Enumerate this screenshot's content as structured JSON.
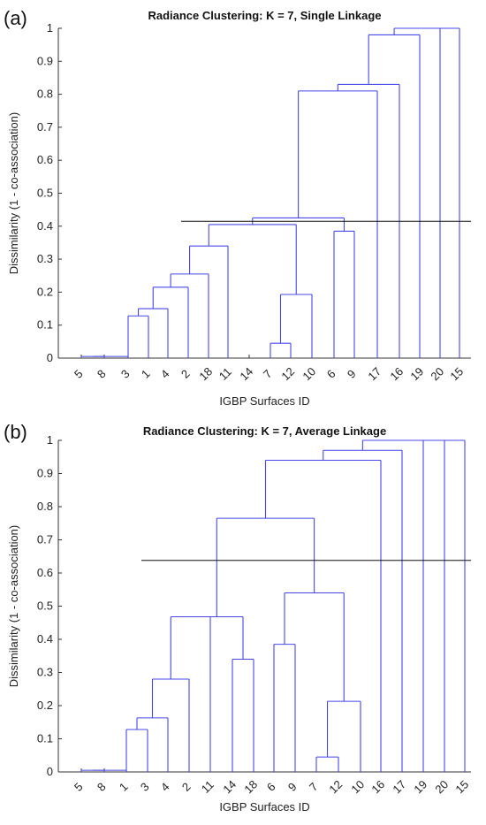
{
  "chart_data": [
    {
      "type": "dendrogram",
      "panel_label": "(a)",
      "title": "Radiance Clustering: K = 7, Single Linkage",
      "xlabel": "IGBP Surfaces ID",
      "ylabel": "Dissimilarity (1 - co-association)",
      "ylim": [
        0,
        1
      ],
      "yticks": [
        "0",
        "0.1",
        "0.2",
        "0.3",
        "0.4",
        "0.5",
        "0.6",
        "0.7",
        "0.8",
        "0.9",
        "1"
      ],
      "leaves": [
        "5",
        "8",
        "3",
        "1",
        "4",
        "2",
        "18",
        "11",
        "14",
        "7",
        "12",
        "10",
        "6",
        "9",
        "17",
        "16",
        "19",
        "20",
        "15"
      ],
      "cut_height": 0.415,
      "merges": [
        {
          "left": "5",
          "right": "8",
          "height": 0.005
        },
        {
          "left": "5-8",
          "right": "3",
          "height": 0.005
        },
        {
          "left": "3",
          "right": "1",
          "height": 0.128
        },
        {
          "left": "3-1",
          "right": "4",
          "height": 0.15
        },
        {
          "left": "3-1-4",
          "right": "2",
          "height": 0.215
        },
        {
          "left": "3-1-4-2",
          "right": "18",
          "height": 0.255
        },
        {
          "left": "3-1-4-2-18",
          "right": "11",
          "height": 0.34
        },
        {
          "left": "7",
          "right": "12",
          "height": 0.045
        },
        {
          "left": "7-12",
          "right": "10",
          "height": 0.193
        },
        {
          "left": "...-11",
          "right": "7-12-10",
          "height": 0.405
        },
        {
          "left": "6",
          "right": "9",
          "height": 0.385
        },
        {
          "left": "...-10",
          "right": "6-9",
          "height": 0.425
        },
        {
          "left": "...-9",
          "right": "17",
          "height": 0.81
        },
        {
          "left": "...-17",
          "right": "16",
          "height": 0.83
        },
        {
          "left": "...-16",
          "right": "19",
          "height": 0.98
        },
        {
          "left": "...-19",
          "right": "20",
          "height": 1.0
        },
        {
          "left": "...-20",
          "right": "15",
          "height": 1.0
        }
      ]
    },
    {
      "type": "dendrogram",
      "panel_label": "(b)",
      "title": "Radiance Clustering: K = 7, Average Linkage",
      "xlabel": "IGBP Surfaces ID",
      "ylabel": "Dissimilarity (1 - co-association)",
      "ylim": [
        0,
        1
      ],
      "yticks": [
        "0",
        "0.1",
        "0.2",
        "0.3",
        "0.4",
        "0.5",
        "0.6",
        "0.7",
        "0.8",
        "0.9",
        "1"
      ],
      "leaves": [
        "5",
        "8",
        "1",
        "3",
        "4",
        "2",
        "11",
        "14",
        "18",
        "6",
        "9",
        "7",
        "12",
        "10",
        "16",
        "17",
        "19",
        "20",
        "15"
      ],
      "cut_height": 0.638,
      "merges": [
        {
          "left": "5",
          "right": "8",
          "height": 0.005
        },
        {
          "left": "5-8",
          "right": "1",
          "height": 0.005
        },
        {
          "left": "1",
          "right": "3",
          "height": 0.128
        },
        {
          "left": "1-3",
          "right": "4",
          "height": 0.163
        },
        {
          "left": "1-3-4",
          "right": "2",
          "height": 0.28
        },
        {
          "left": "14",
          "right": "18",
          "height": 0.34
        },
        {
          "left": "1-3-4-2",
          "right": "11",
          "height": 0.468
        },
        {
          "left": "7",
          "right": "12",
          "height": 0.045
        },
        {
          "left": "7-12",
          "right": "10",
          "height": 0.213
        },
        {
          "left": "6",
          "right": "9",
          "height": 0.385
        },
        {
          "left": "6-9",
          "right": "7-12-10",
          "height": 0.54
        },
        {
          "left": "...-11",
          "right": "14-18",
          "height": 0.468
        },
        {
          "left": "group-A",
          "right": "group-B",
          "height": 0.765
        },
        {
          "left": "...",
          "right": "16",
          "height": 0.94
        },
        {
          "left": "...-16",
          "right": "17",
          "height": 0.97
        },
        {
          "left": "...-17",
          "right": "19",
          "height": 1.0
        },
        {
          "left": "...-19",
          "right": "20",
          "height": 1.0
        },
        {
          "left": "...-20",
          "right": "15",
          "height": 1.0
        }
      ]
    }
  ]
}
